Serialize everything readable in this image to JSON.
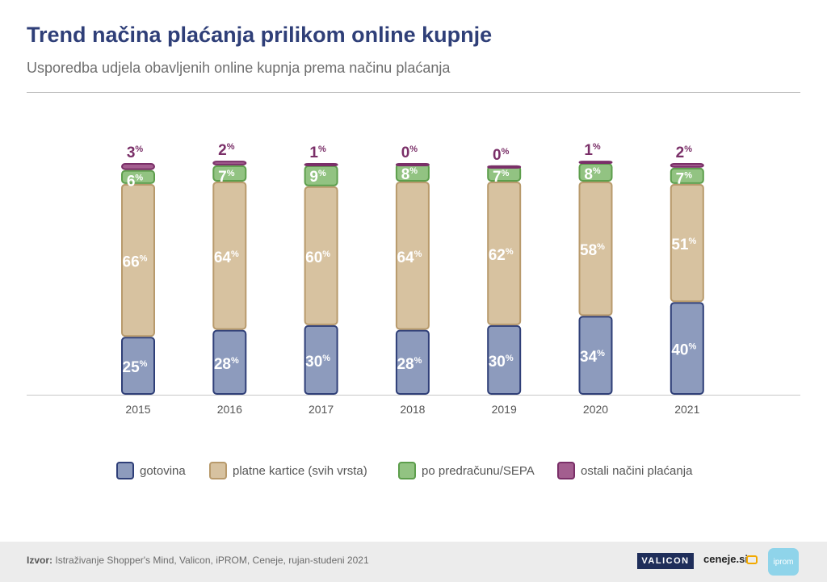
{
  "header": {
    "title": "Trend načina plaćanja prilikom online kupnje",
    "subtitle": "Usporedba udjela obavljenih online kupnja prema načinu plaćanja"
  },
  "chart_data": {
    "type": "bar",
    "stacked": true,
    "categories": [
      "2015",
      "2016",
      "2017",
      "2018",
      "2019",
      "2020",
      "2021"
    ],
    "unit": "%",
    "series": [
      {
        "name": "gotovina",
        "color": "#8d9bbd",
        "border": "#2f3f78",
        "values": [
          25,
          28,
          30,
          28,
          30,
          34,
          40
        ]
      },
      {
        "name": "platne kartice (svih vrsta)",
        "color": "#d7c2a0",
        "border": "#b89a6c",
        "values": [
          66,
          64,
          60,
          64,
          62,
          58,
          51
        ]
      },
      {
        "name": "po predračunu/SEPA",
        "color": "#92c382",
        "border": "#5d9e4c",
        "values": [
          6,
          7,
          9,
          8,
          7,
          8,
          7
        ]
      },
      {
        "name": "ostali načini plaćanja",
        "color": "#a35e8f",
        "border": "#7a2f68",
        "values": [
          3,
          2,
          1,
          0,
          0,
          1,
          2
        ]
      }
    ],
    "legend_position": "bottom"
  },
  "footer": {
    "source_label": "Izvor:",
    "source_text": "Istraživanje Shopper's Mind, Valicon, iPROM, Ceneje, rujan-studeni 2021",
    "logos": {
      "valicon": "VALICON",
      "ceneje": "ceneje.si",
      "iprom": "iprom"
    }
  }
}
